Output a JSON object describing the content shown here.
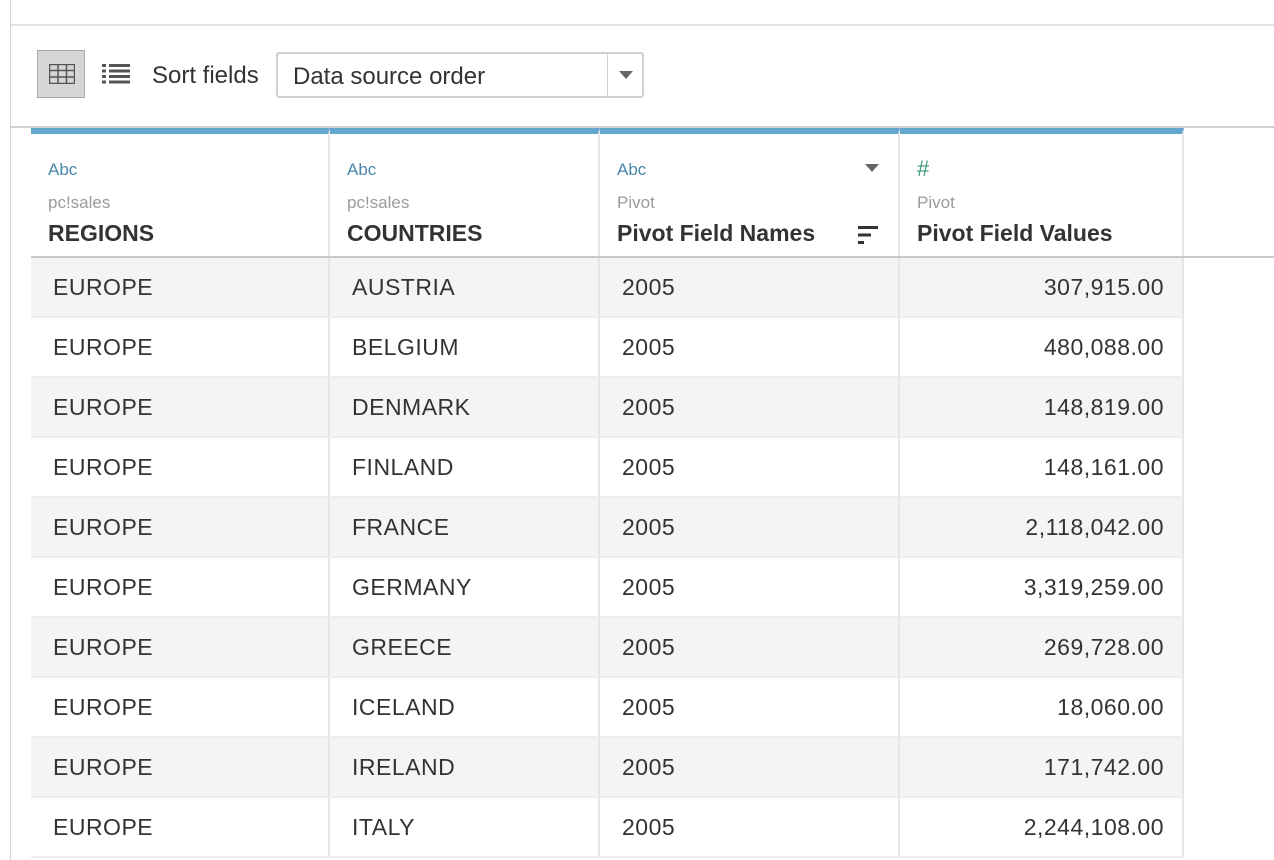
{
  "toolbar": {
    "sort_label": "Sort fields",
    "sort_value": "Data source order",
    "grid_view_icon": "grid-view-icon",
    "list_view_icon": "list-view-icon"
  },
  "columns": [
    {
      "type": "Abc",
      "source": "pc!sales",
      "name": "REGIONS"
    },
    {
      "type": "Abc",
      "source": "pc!sales",
      "name": "COUNTRIES"
    },
    {
      "type": "Abc",
      "source": "Pivot",
      "name": "Pivot Field Names"
    },
    {
      "type": "#",
      "source": "Pivot",
      "name": "Pivot Field Values"
    }
  ],
  "rows": [
    [
      "EUROPE",
      "AUSTRIA",
      "2005",
      "307,915.00"
    ],
    [
      "EUROPE",
      "BELGIUM",
      "2005",
      "480,088.00"
    ],
    [
      "EUROPE",
      "DENMARK",
      "2005",
      "148,819.00"
    ],
    [
      "EUROPE",
      "FINLAND",
      "2005",
      "148,161.00"
    ],
    [
      "EUROPE",
      "FRANCE",
      "2005",
      "2,118,042.00"
    ],
    [
      "EUROPE",
      "GERMANY",
      "2005",
      "3,319,259.00"
    ],
    [
      "EUROPE",
      "GREECE",
      "2005",
      "269,728.00"
    ],
    [
      "EUROPE",
      "ICELAND",
      "2005",
      "18,060.00"
    ],
    [
      "EUROPE",
      "IRELAND",
      "2005",
      "171,742.00"
    ],
    [
      "EUROPE",
      "ITALY",
      "2005",
      "2,244,108.00"
    ]
  ],
  "colors": {
    "header_accent": "#62a8cc",
    "string_type": "#4a86a8",
    "number_type": "#3b9a77"
  }
}
